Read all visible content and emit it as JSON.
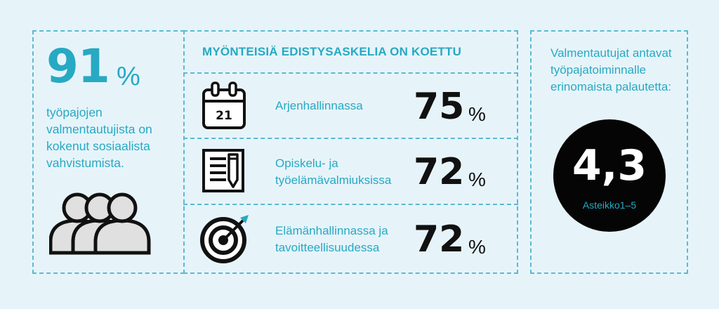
{
  "left": {
    "big_number": "91",
    "percent_sign": "%",
    "description_lines": [
      "työpajojen",
      "valmentautujista on",
      "kokenut sosiaalista",
      "vahvistumista."
    ],
    "icon": "people-group-icon"
  },
  "middle": {
    "header": "MYÖNTEISIÄ EDISTYSASKELIA ON KOETTU",
    "rows": [
      {
        "icon": "calendar-icon",
        "icon_text": "21",
        "label_lines": [
          "Arjenhallinnassa"
        ],
        "value": "75",
        "unit": "%"
      },
      {
        "icon": "document-pencil-icon",
        "label_lines": [
          "Opiskelu- ja",
          "työelämävalmiuksissa"
        ],
        "value": "72",
        "unit": "%"
      },
      {
        "icon": "target-icon",
        "label_lines": [
          "Elämänhallinnassa ja",
          "tavoitteellisuudessa"
        ],
        "value": "72",
        "unit": "%"
      }
    ]
  },
  "right": {
    "text_lines": [
      "Valmentautujat antavat",
      "työpajatoiminnalle",
      "erinomaista palautetta:"
    ],
    "score": "4,3",
    "scale": "Asteikko1–5"
  },
  "colors": {
    "background": "#e6f4fa",
    "accent": "#27a9c3",
    "dark": "#111111",
    "dashed_border": "#5bbad0"
  }
}
